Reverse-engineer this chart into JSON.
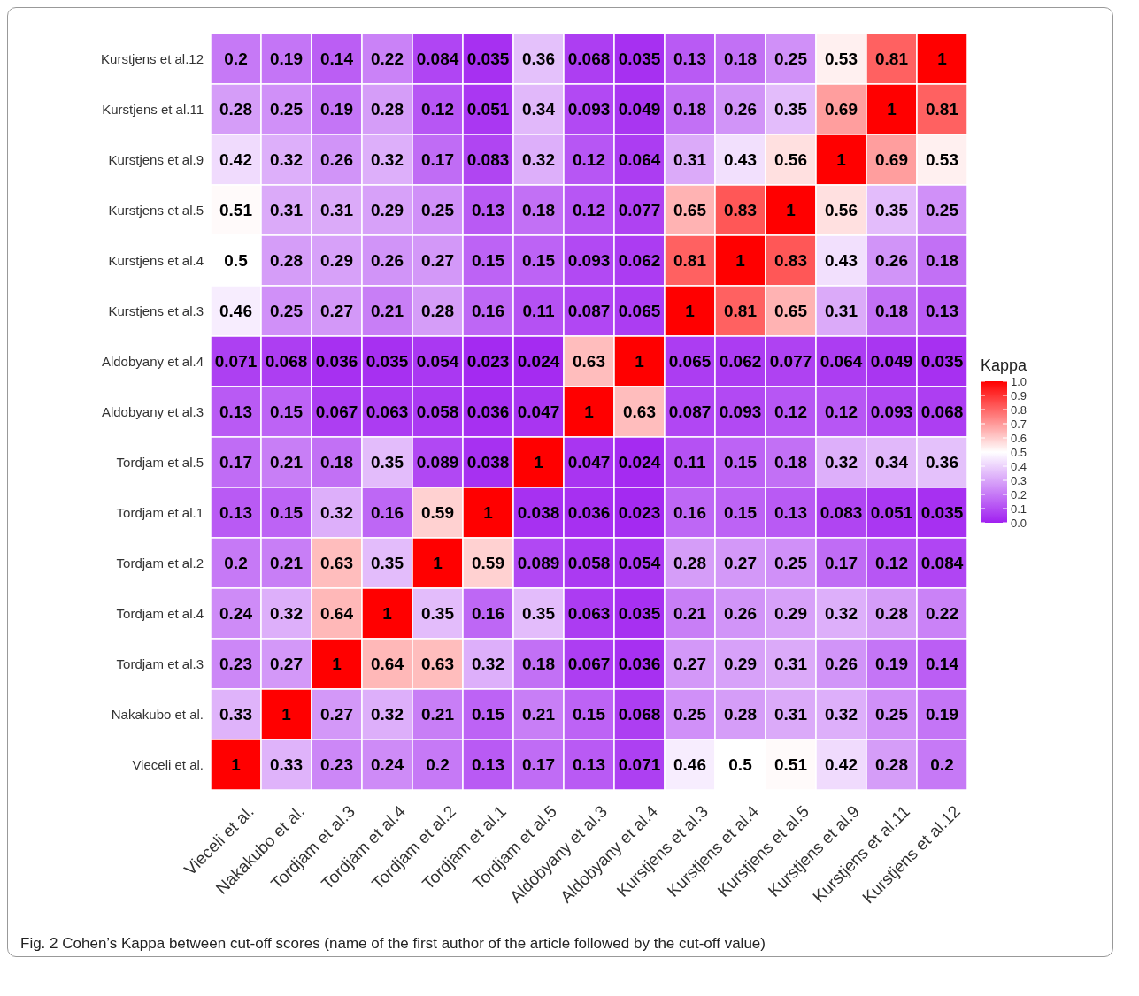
{
  "chart_data": {
    "type": "heatmap",
    "categories": [
      "Vieceli et al.",
      "Nakakubo et al.",
      "Tordjam et al.3",
      "Tordjam et al.4",
      "Tordjam et al.2",
      "Tordjam et al.1",
      "Tordjam et al.5",
      "Aldobyany et al.3",
      "Aldobyany et al.4",
      "Kurstjens et al.3",
      "Kurstjens et al.4",
      "Kurstjens et al.5",
      "Kurstjens et al.9",
      "Kurstjens et al.11",
      "Kurstjens et al.12"
    ],
    "y_categories": [
      "Kurstjens et al.12",
      "Kurstjens et al.11",
      "Kurstjens et al.9",
      "Kurstjens et al.5",
      "Kurstjens et al.4",
      "Kurstjens et al.3",
      "Aldobyany et al.4",
      "Aldobyany et al.3",
      "Tordjam et al.5",
      "Tordjam et al.1",
      "Tordjam et al.2",
      "Tordjam et al.4",
      "Tordjam et al.3",
      "Nakakubo et al.",
      "Vieceli et al."
    ],
    "cells": [
      [
        0.2,
        0.19,
        0.14,
        0.22,
        0.084,
        0.035,
        0.36,
        0.068,
        0.035,
        0.13,
        0.18,
        0.25,
        0.53,
        0.81,
        1
      ],
      [
        0.28,
        0.25,
        0.19,
        0.28,
        0.12,
        0.051,
        0.34,
        0.093,
        0.049,
        0.18,
        0.26,
        0.35,
        0.69,
        1,
        0.81
      ],
      [
        0.42,
        0.32,
        0.26,
        0.32,
        0.17,
        0.083,
        0.32,
        0.12,
        0.064,
        0.31,
        0.43,
        0.56,
        1,
        0.69,
        0.53
      ],
      [
        0.51,
        0.31,
        0.31,
        0.29,
        0.25,
        0.13,
        0.18,
        0.12,
        0.077,
        0.65,
        0.83,
        1,
        0.56,
        0.35,
        0.25
      ],
      [
        0.5,
        0.28,
        0.29,
        0.26,
        0.27,
        0.15,
        0.15,
        0.093,
        0.062,
        0.81,
        1,
        0.83,
        0.43,
        0.26,
        0.18
      ],
      [
        0.46,
        0.25,
        0.27,
        0.21,
        0.28,
        0.16,
        0.11,
        0.087,
        0.065,
        1,
        0.81,
        0.65,
        0.31,
        0.18,
        0.13
      ],
      [
        0.071,
        0.068,
        0.036,
        0.035,
        0.054,
        0.023,
        0.024,
        0.63,
        1,
        0.065,
        0.062,
        0.077,
        0.064,
        0.049,
        0.035
      ],
      [
        0.13,
        0.15,
        0.067,
        0.063,
        0.058,
        0.036,
        0.047,
        1,
        0.63,
        0.087,
        0.093,
        0.12,
        0.12,
        0.093,
        0.068
      ],
      [
        0.17,
        0.21,
        0.18,
        0.35,
        0.089,
        0.038,
        1,
        0.047,
        0.024,
        0.11,
        0.15,
        0.18,
        0.32,
        0.34,
        0.36
      ],
      [
        0.13,
        0.15,
        0.32,
        0.16,
        0.59,
        1,
        0.038,
        0.036,
        0.023,
        0.16,
        0.15,
        0.13,
        0.083,
        0.051,
        0.035
      ],
      [
        0.2,
        0.21,
        0.63,
        0.35,
        1,
        0.59,
        0.089,
        0.058,
        0.054,
        0.28,
        0.27,
        0.25,
        0.17,
        0.12,
        0.084
      ],
      [
        0.24,
        0.32,
        0.64,
        1,
        0.35,
        0.16,
        0.35,
        0.063,
        0.035,
        0.21,
        0.26,
        0.29,
        0.32,
        0.28,
        0.22
      ],
      [
        0.23,
        0.27,
        1,
        0.64,
        0.63,
        0.32,
        0.18,
        0.067,
        0.036,
        0.27,
        0.29,
        0.31,
        0.26,
        0.19,
        0.14
      ],
      [
        0.33,
        1,
        0.27,
        0.32,
        0.21,
        0.15,
        0.21,
        0.15,
        0.068,
        0.25,
        0.28,
        0.31,
        0.32,
        0.25,
        0.19
      ],
      [
        1,
        0.33,
        0.23,
        0.24,
        0.2,
        0.13,
        0.17,
        0.13,
        0.071,
        0.46,
        0.5,
        0.51,
        0.42,
        0.28,
        0.2
      ]
    ],
    "data_labels": true,
    "clabel": "Kappa",
    "clim": [
      0,
      1
    ],
    "cticks": [
      {
        "value": 0,
        "label": "0.0"
      },
      0.1,
      0.2,
      0.3,
      0.4,
      0.5,
      0.6,
      0.7,
      0.8,
      0.9,
      {
        "value": 1,
        "label": "1.0"
      }
    ],
    "annotations": [
      "Fig. 2  Cohen’s Kappa between cut-off scores (name of the first author of the article followed by the cut-off value)"
    ]
  }
}
